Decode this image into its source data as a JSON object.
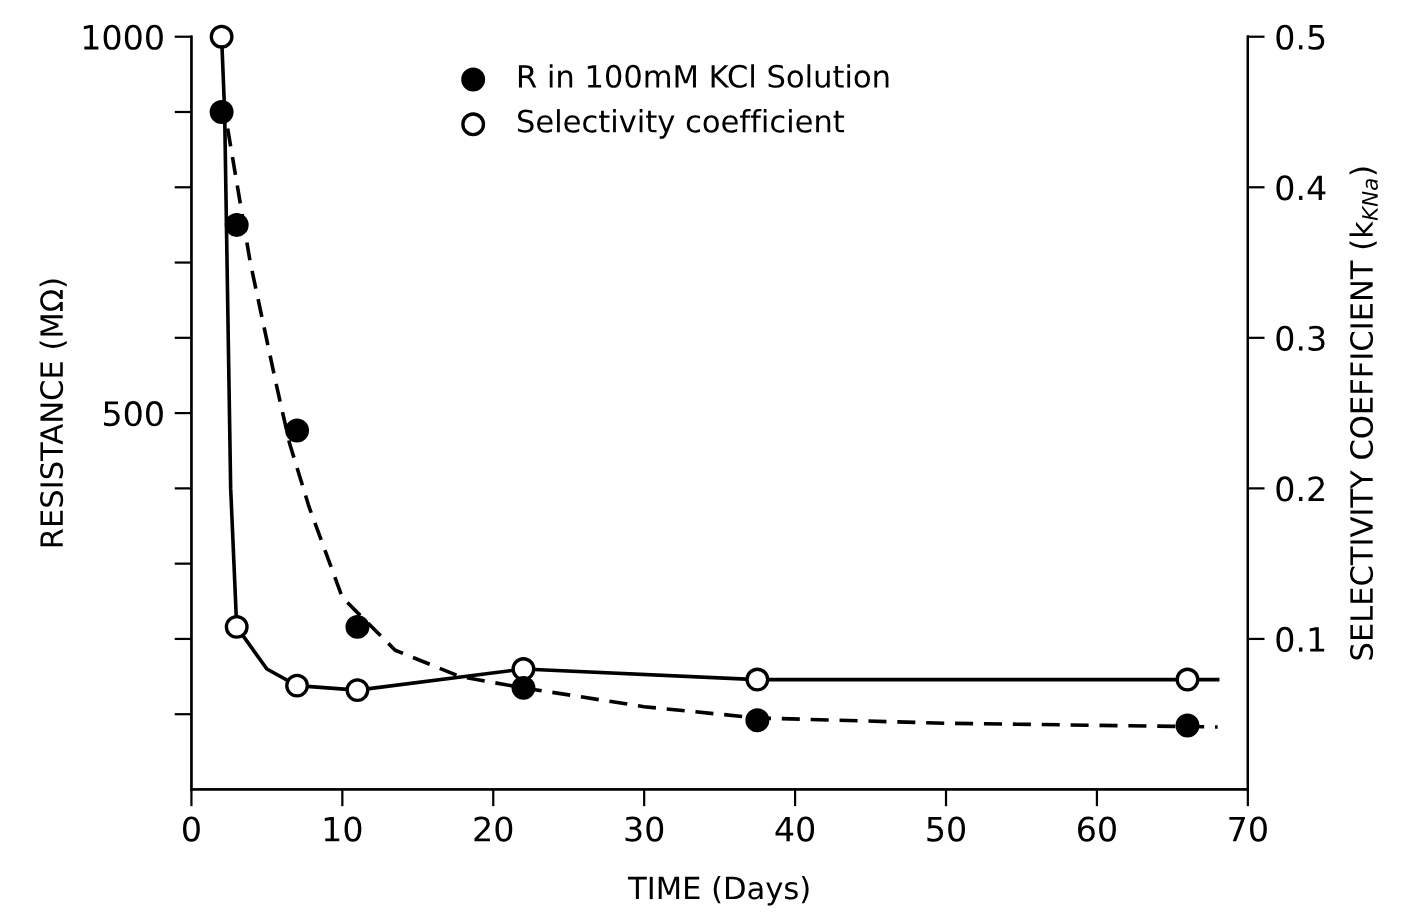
{
  "chart_data": {
    "type": "scatter",
    "xlabel": "TIME (Days)",
    "ylabel": "RESISTANCE (MΩ)",
    "y2label": "SELECTIVITY COEFFICIENT (k$_{KNa}$)",
    "xlim": [
      0,
      70
    ],
    "xticks": [
      0,
      10,
      20,
      30,
      40,
      50,
      60,
      70
    ],
    "ylim": [
      0,
      1000
    ],
    "yticks": [
      {
        "value": 100,
        "label": null
      },
      {
        "value": 200,
        "label": null
      },
      {
        "value": 300,
        "label": null
      },
      {
        "value": 400,
        "label": null
      },
      500,
      {
        "value": 600,
        "label": null
      },
      {
        "value": 700,
        "label": null
      },
      {
        "value": 800,
        "label": null
      },
      {
        "value": 900,
        "label": null
      },
      1000
    ],
    "y2lim": [
      0,
      0.5
    ],
    "y2ticks": [
      0.1,
      0.2,
      0.3,
      0.4,
      0.5
    ],
    "legend": "top",
    "grid": false,
    "series": [
      {
        "type": "line",
        "axis": "y",
        "color": "#000000",
        "line_style": "dashed",
        "marker": "none",
        "x": [
          2.4,
          3.9,
          5.6,
          6.5,
          7.8,
          10,
          13.5,
          17.8,
          22,
          30,
          37.5,
          50,
          68
        ],
        "values": [
          878,
          700,
          540,
          460,
          375,
          255,
          185,
          150,
          135,
          110,
          95,
          88,
          83
        ]
      },
      {
        "type": "line",
        "axis": "y2",
        "color": "#000000",
        "line_style": "solid",
        "marker": "none",
        "x": [
          2,
          2.2,
          2.6,
          3,
          5,
          7,
          11,
          22,
          37.5,
          68
        ],
        "values": [
          0.5,
          0.45,
          0.2,
          0.108,
          0.08,
          0.069,
          0.066,
          0.08,
          0.073,
          0.073
        ]
      },
      {
        "axis": "y",
        "name": "R in 100mM KCl Solution",
        "color": "#000000",
        "marker": "circle",
        "x": [
          2,
          3,
          7,
          11,
          22,
          37.5,
          66
        ],
        "values": [
          900,
          750,
          477,
          216,
          135,
          92,
          85
        ]
      },
      {
        "axis": "y2",
        "name": "Selectivity coefficient",
        "color": "#ffffff",
        "marker": "circle",
        "x": [
          2,
          3,
          7,
          11,
          22,
          37.5,
          66
        ],
        "values": [
          0.5,
          0.108,
          0.069,
          0.066,
          0.08,
          0.073,
          0.073
        ]
      }
    ]
  }
}
